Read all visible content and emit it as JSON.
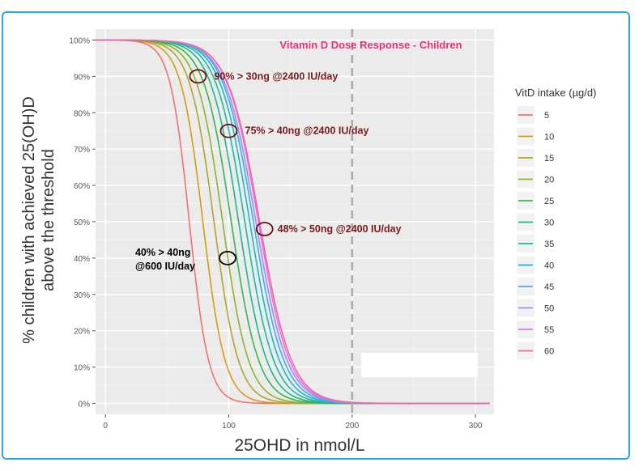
{
  "chart_data": {
    "type": "line",
    "title": "Vitamin D Dose Response - Children",
    "xlabel": "25OHD in nmol/L",
    "ylabel_line1": "% children with achieved 25(OH)D",
    "ylabel_line2": "above the threshold",
    "xlim": [
      -8,
      315
    ],
    "ylim": [
      -0.03,
      1.03
    ],
    "x_ticks": [
      0,
      100,
      200,
      300
    ],
    "x_tick_labels": [
      "0",
      "100",
      "200",
      "300"
    ],
    "y_ticks": [
      0,
      0.1,
      0.2,
      0.3,
      0.4,
      0.5,
      0.6,
      0.7,
      0.8,
      0.9,
      1.0
    ],
    "y_tick_labels": [
      "0%",
      "10%",
      "20%",
      "30%",
      "40%",
      "50%",
      "60%",
      "70%",
      "80%",
      "90%",
      "100%"
    ],
    "reference_line_x": 200,
    "legend_title": "VitD intake (µg/d)",
    "legend_position": "right",
    "series": [
      {
        "name": "5",
        "color": "#f0736b",
        "median": 68,
        "spread": 13.0
      },
      {
        "name": "10",
        "color": "#d69a16",
        "median": 79,
        "spread": 15.0
      },
      {
        "name": "15",
        "color": "#b0a52a",
        "median": 88,
        "spread": 16.5
      },
      {
        "name": "20",
        "color": "#8bb52a",
        "median": 95,
        "spread": 17.5
      },
      {
        "name": "25",
        "color": "#33b84c",
        "median": 102,
        "spread": 18.5
      },
      {
        "name": "30",
        "color": "#1bb98a",
        "median": 108,
        "spread": 19.0
      },
      {
        "name": "35",
        "color": "#16bca7",
        "median": 113,
        "spread": 19.5
      },
      {
        "name": "40",
        "color": "#1ab8c7",
        "median": 117,
        "spread": 20.0
      },
      {
        "name": "45",
        "color": "#4aa6ec",
        "median": 120,
        "spread": 20.5
      },
      {
        "name": "50",
        "color": "#9a8ff0",
        "median": 122,
        "spread": 21.0
      },
      {
        "name": "55",
        "color": "#e272e8",
        "median": 124,
        "spread": 21.0
      },
      {
        "name": "60",
        "color": "#f4669f",
        "median": 125,
        "spread": 21.5
      }
    ],
    "annotations": [
      {
        "text": "90% > 30ng @2400 IU/day",
        "x": 75,
        "y": 0.9,
        "color": "#7a1a1a"
      },
      {
        "text": "75% > 40ng @2400 IU/day",
        "x": 100,
        "y": 0.75,
        "color": "#7a1a1a"
      },
      {
        "text": "48% > 50ng @2400 IU/day",
        "x": 129,
        "y": 0.48,
        "color": "#7a1a1a"
      },
      {
        "text_line1": "40% > 40ng",
        "text_line2": "@600 IU/day",
        "x": 99,
        "y": 0.4,
        "color": "#000000"
      }
    ],
    "title_color": "#e8327a"
  }
}
